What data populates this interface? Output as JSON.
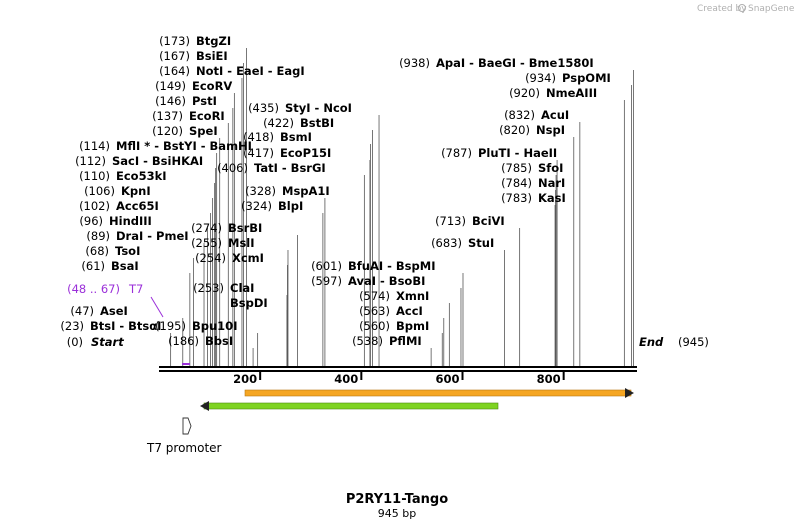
{
  "credit": {
    "text": "Created by",
    "brand": "SnapGene"
  },
  "map": {
    "title": "P2RY11-Tango",
    "length_label": "945 bp",
    "length": 945,
    "start_label": "Start",
    "end_label": "End",
    "start_pos": "(0)",
    "end_pos": "(945)",
    "ticks": [
      "200",
      "400",
      "600",
      "800"
    ]
  },
  "sites": [
    {
      "pos": "(173)",
      "names": "BtgZI",
      "bp": 173
    },
    {
      "pos": "(167)",
      "names": "BsiEI",
      "bp": 167
    },
    {
      "pos": "(164)",
      "names": "NotI  -  EaeI  -  EagI",
      "bp": 164
    },
    {
      "pos": "(149)",
      "names": "EcoRV",
      "bp": 149
    },
    {
      "pos": "(146)",
      "names": "PstI",
      "bp": 146
    },
    {
      "pos": "(137)",
      "names": "EcoRI",
      "bp": 137
    },
    {
      "pos": "(120)",
      "names": "SpeI",
      "bp": 120
    },
    {
      "pos": "(114)",
      "names": "MflI *  -  BstYI  -  BamHI",
      "bp": 114
    },
    {
      "pos": "(112)",
      "names": "SacI  -  BsiHKAI",
      "bp": 112
    },
    {
      "pos": "(110)",
      "names": "Eco53kI",
      "bp": 110
    },
    {
      "pos": "(106)",
      "names": "KpnI",
      "bp": 106
    },
    {
      "pos": "(102)",
      "names": "Acc65I",
      "bp": 102
    },
    {
      "pos": "(96)",
      "names": "HindIII",
      "bp": 96
    },
    {
      "pos": "(89)",
      "names": "DraI  -  PmeI",
      "bp": 89
    },
    {
      "pos": "(68)",
      "names": "TsoI",
      "bp": 68
    },
    {
      "pos": "(61)",
      "names": "BsaI",
      "bp": 61
    },
    {
      "pos": "(47)",
      "names": "AseI",
      "bp": 47
    },
    {
      "pos": "(23)",
      "names": "BtsI  -  BtsαI",
      "bp": 23
    },
    {
      "pos": "(195)",
      "names": "Bpu10I",
      "bp": 195
    },
    {
      "pos": "(186)",
      "names": "BbsI",
      "bp": 186
    },
    {
      "pos": "(253)",
      "names": "ClaI",
      "bp": 253
    },
    {
      "pos": "",
      "names": "BspDI",
      "bp": 253
    },
    {
      "pos": "(254)",
      "names": "XcmI",
      "bp": 254
    },
    {
      "pos": "(255)",
      "names": "MslI",
      "bp": 255
    },
    {
      "pos": "(274)",
      "names": "BsrBI",
      "bp": 274
    },
    {
      "pos": "(324)",
      "names": "BlpI",
      "bp": 324
    },
    {
      "pos": "(328)",
      "names": "MspA1I",
      "bp": 328
    },
    {
      "pos": "(406)",
      "names": "TatI  -  BsrGI",
      "bp": 406
    },
    {
      "pos": "(417)",
      "names": "EcoP15I",
      "bp": 417
    },
    {
      "pos": "(418)",
      "names": "BsmI",
      "bp": 418
    },
    {
      "pos": "(422)",
      "names": "BstBI",
      "bp": 422
    },
    {
      "pos": "(435)",
      "names": "StyI  -  NcoI",
      "bp": 435
    },
    {
      "pos": "(601)",
      "names": "BfuAI  -  BspMI",
      "bp": 601
    },
    {
      "pos": "(597)",
      "names": "AvaI  -  BsoBI",
      "bp": 597
    },
    {
      "pos": "(574)",
      "names": "XmnI",
      "bp": 574
    },
    {
      "pos": "(563)",
      "names": "AccI",
      "bp": 563
    },
    {
      "pos": "(560)",
      "names": "BpmI",
      "bp": 560
    },
    {
      "pos": "(538)",
      "names": "PflMI",
      "bp": 538
    },
    {
      "pos": "(683)",
      "names": "StuI",
      "bp": 683
    },
    {
      "pos": "(713)",
      "names": "BciVI",
      "bp": 713
    },
    {
      "pos": "(783)",
      "names": "KasI",
      "bp": 783
    },
    {
      "pos": "(784)",
      "names": "NarI",
      "bp": 784
    },
    {
      "pos": "(785)",
      "names": "SfoI",
      "bp": 785
    },
    {
      "pos": "(787)",
      "names": "PluTI  -  HaeII",
      "bp": 787
    },
    {
      "pos": "(820)",
      "names": "NspI",
      "bp": 820
    },
    {
      "pos": "(832)",
      "names": "AcuI",
      "bp": 832
    },
    {
      "pos": "(920)",
      "names": "NmeAIII",
      "bp": 920
    },
    {
      "pos": "(934)",
      "names": "PspOMI",
      "bp": 934
    },
    {
      "pos": "(938)",
      "names": "ApaI  -  BaeGI  -  Bme1580I",
      "bp": 938
    }
  ],
  "primer": {
    "pos": "(48 .. 67)",
    "name": "T7"
  },
  "features": {
    "promoter": "T7 promoter",
    "orange_color": "#f5a623",
    "green_color": "#7ed321"
  }
}
